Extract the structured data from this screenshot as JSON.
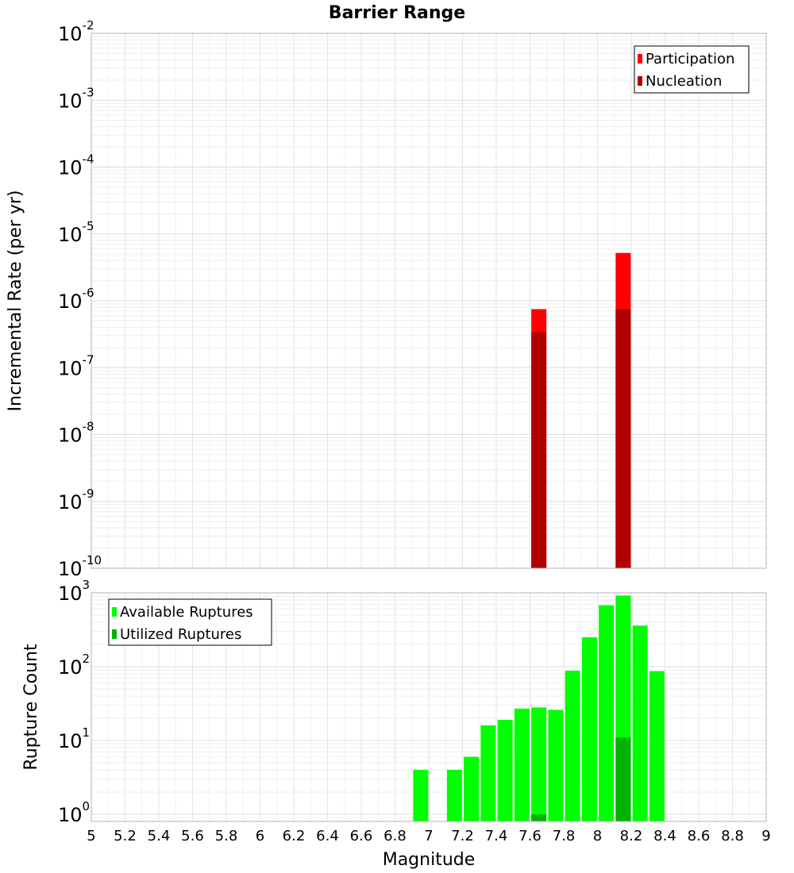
{
  "title": "Barrier Range",
  "colors": {
    "participation": "#ff0000",
    "nucleation": "#b00000",
    "available": "#00ff00",
    "utilized": "#00b300",
    "grid": "#e6e6e6",
    "frame": "#b3b3b3"
  },
  "chart_data": [
    {
      "type": "bar",
      "panel": "top",
      "scale": "log",
      "xlabel": "",
      "ylabel": "Incremental Rate (per yr)",
      "xlim": [
        5,
        9
      ],
      "ylim": [
        1e-10,
        0.01
      ],
      "ytick_base": "10",
      "ytick_exponents": [
        "-2",
        "-3",
        "-4",
        "-5",
        "-6",
        "-7",
        "-8",
        "-9",
        "-10"
      ],
      "legend": {
        "position": "top-right",
        "entries": [
          "Participation",
          "Nucleation"
        ]
      },
      "series": [
        {
          "name": "Participation",
          "color": "#ff0000",
          "points": [
            {
              "x": 7.65,
              "y": 7.5e-07
            },
            {
              "x": 8.15,
              "y": 5.2e-06
            }
          ]
        },
        {
          "name": "Nucleation",
          "color": "#b00000",
          "points": [
            {
              "x": 7.65,
              "y": 3.4e-07
            },
            {
              "x": 8.15,
              "y": 7.5e-07
            }
          ]
        }
      ]
    },
    {
      "type": "bar",
      "panel": "bottom",
      "scale": "log",
      "xlabel": "Magnitude",
      "ylabel": "Rupture Count",
      "xlim": [
        5,
        9
      ],
      "ylim": [
        0.8,
        1000
      ],
      "ytick_base": "10",
      "ytick_exponents": [
        "3",
        "2",
        "1",
        "0"
      ],
      "xtick_labels": [
        "5",
        "5.2",
        "5.4",
        "5.6",
        "5.8",
        "6",
        "6.2",
        "6.4",
        "6.6",
        "6.8",
        "7",
        "7.2",
        "7.4",
        "7.6",
        "7.8",
        "8",
        "8.2",
        "8.4",
        "8.6",
        "8.8",
        "9"
      ],
      "legend": {
        "position": "top-left",
        "entries": [
          "Available Ruptures",
          "Utilized Ruptures"
        ]
      },
      "series": [
        {
          "name": "Available Ruptures",
          "color": "#00ff00",
          "points": [
            {
              "x": 6.95,
              "y": 4
            },
            {
              "x": 7.15,
              "y": 4
            },
            {
              "x": 7.25,
              "y": 6
            },
            {
              "x": 7.35,
              "y": 16
            },
            {
              "x": 7.45,
              "y": 19
            },
            {
              "x": 7.55,
              "y": 27
            },
            {
              "x": 7.65,
              "y": 28
            },
            {
              "x": 7.75,
              "y": 26
            },
            {
              "x": 7.85,
              "y": 88
            },
            {
              "x": 7.95,
              "y": 250
            },
            {
              "x": 8.05,
              "y": 680
            },
            {
              "x": 8.15,
              "y": 920
            },
            {
              "x": 8.25,
              "y": 360
            },
            {
              "x": 8.35,
              "y": 87
            }
          ]
        },
        {
          "name": "Utilized Ruptures",
          "color": "#00b300",
          "points": [
            {
              "x": 7.65,
              "y": 1
            },
            {
              "x": 8.15,
              "y": 11
            }
          ]
        }
      ]
    }
  ]
}
